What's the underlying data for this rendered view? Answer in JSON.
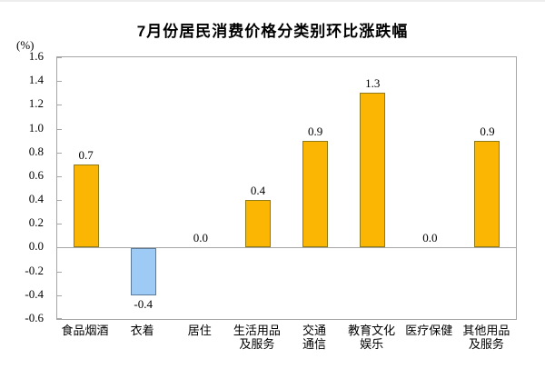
{
  "chart_data": {
    "type": "bar",
    "title": "7月份居民消费价格分类别环比涨跌幅",
    "unit_label": "(%)",
    "categories": [
      "食品烟酒",
      "衣着",
      "居住",
      "生活用品及服务",
      "交通通信",
      "教育文化娱乐",
      "医疗保健",
      "其他用品及服务"
    ],
    "category_lines": [
      [
        "食品烟酒"
      ],
      [
        "衣着"
      ],
      [
        "居住"
      ],
      [
        "生活用品",
        "及服务"
      ],
      [
        "交通",
        "通信"
      ],
      [
        "教育文化",
        "娱乐"
      ],
      [
        "医疗保健"
      ],
      [
        "其他用品",
        "及服务"
      ]
    ],
    "values": [
      0.7,
      -0.4,
      0.0,
      0.4,
      0.9,
      1.3,
      0.0,
      0.9
    ],
    "value_labels": [
      "0.7",
      "-0.4",
      "0.0",
      "0.4",
      "0.9",
      "1.3",
      "0.0",
      "0.9"
    ],
    "xlabel": "",
    "ylabel": "(%)",
    "ylim": [
      -0.6,
      1.6
    ],
    "y_tick_step": 0.2,
    "y_ticks": [
      "1.6",
      "1.4",
      "1.2",
      "1.0",
      "0.8",
      "0.6",
      "0.4",
      "0.2",
      "0.0",
      "-0.2",
      "-0.4",
      "-0.6"
    ],
    "grid": false,
    "legend_position": "none",
    "colors": {
      "positive_fill": "#FBB603",
      "positive_border": "#8F7A1A",
      "negative_fill": "#9DCBF5",
      "negative_border": "#5B7B9B",
      "axis_line": "#A6A6A6",
      "text": "#000000"
    }
  }
}
